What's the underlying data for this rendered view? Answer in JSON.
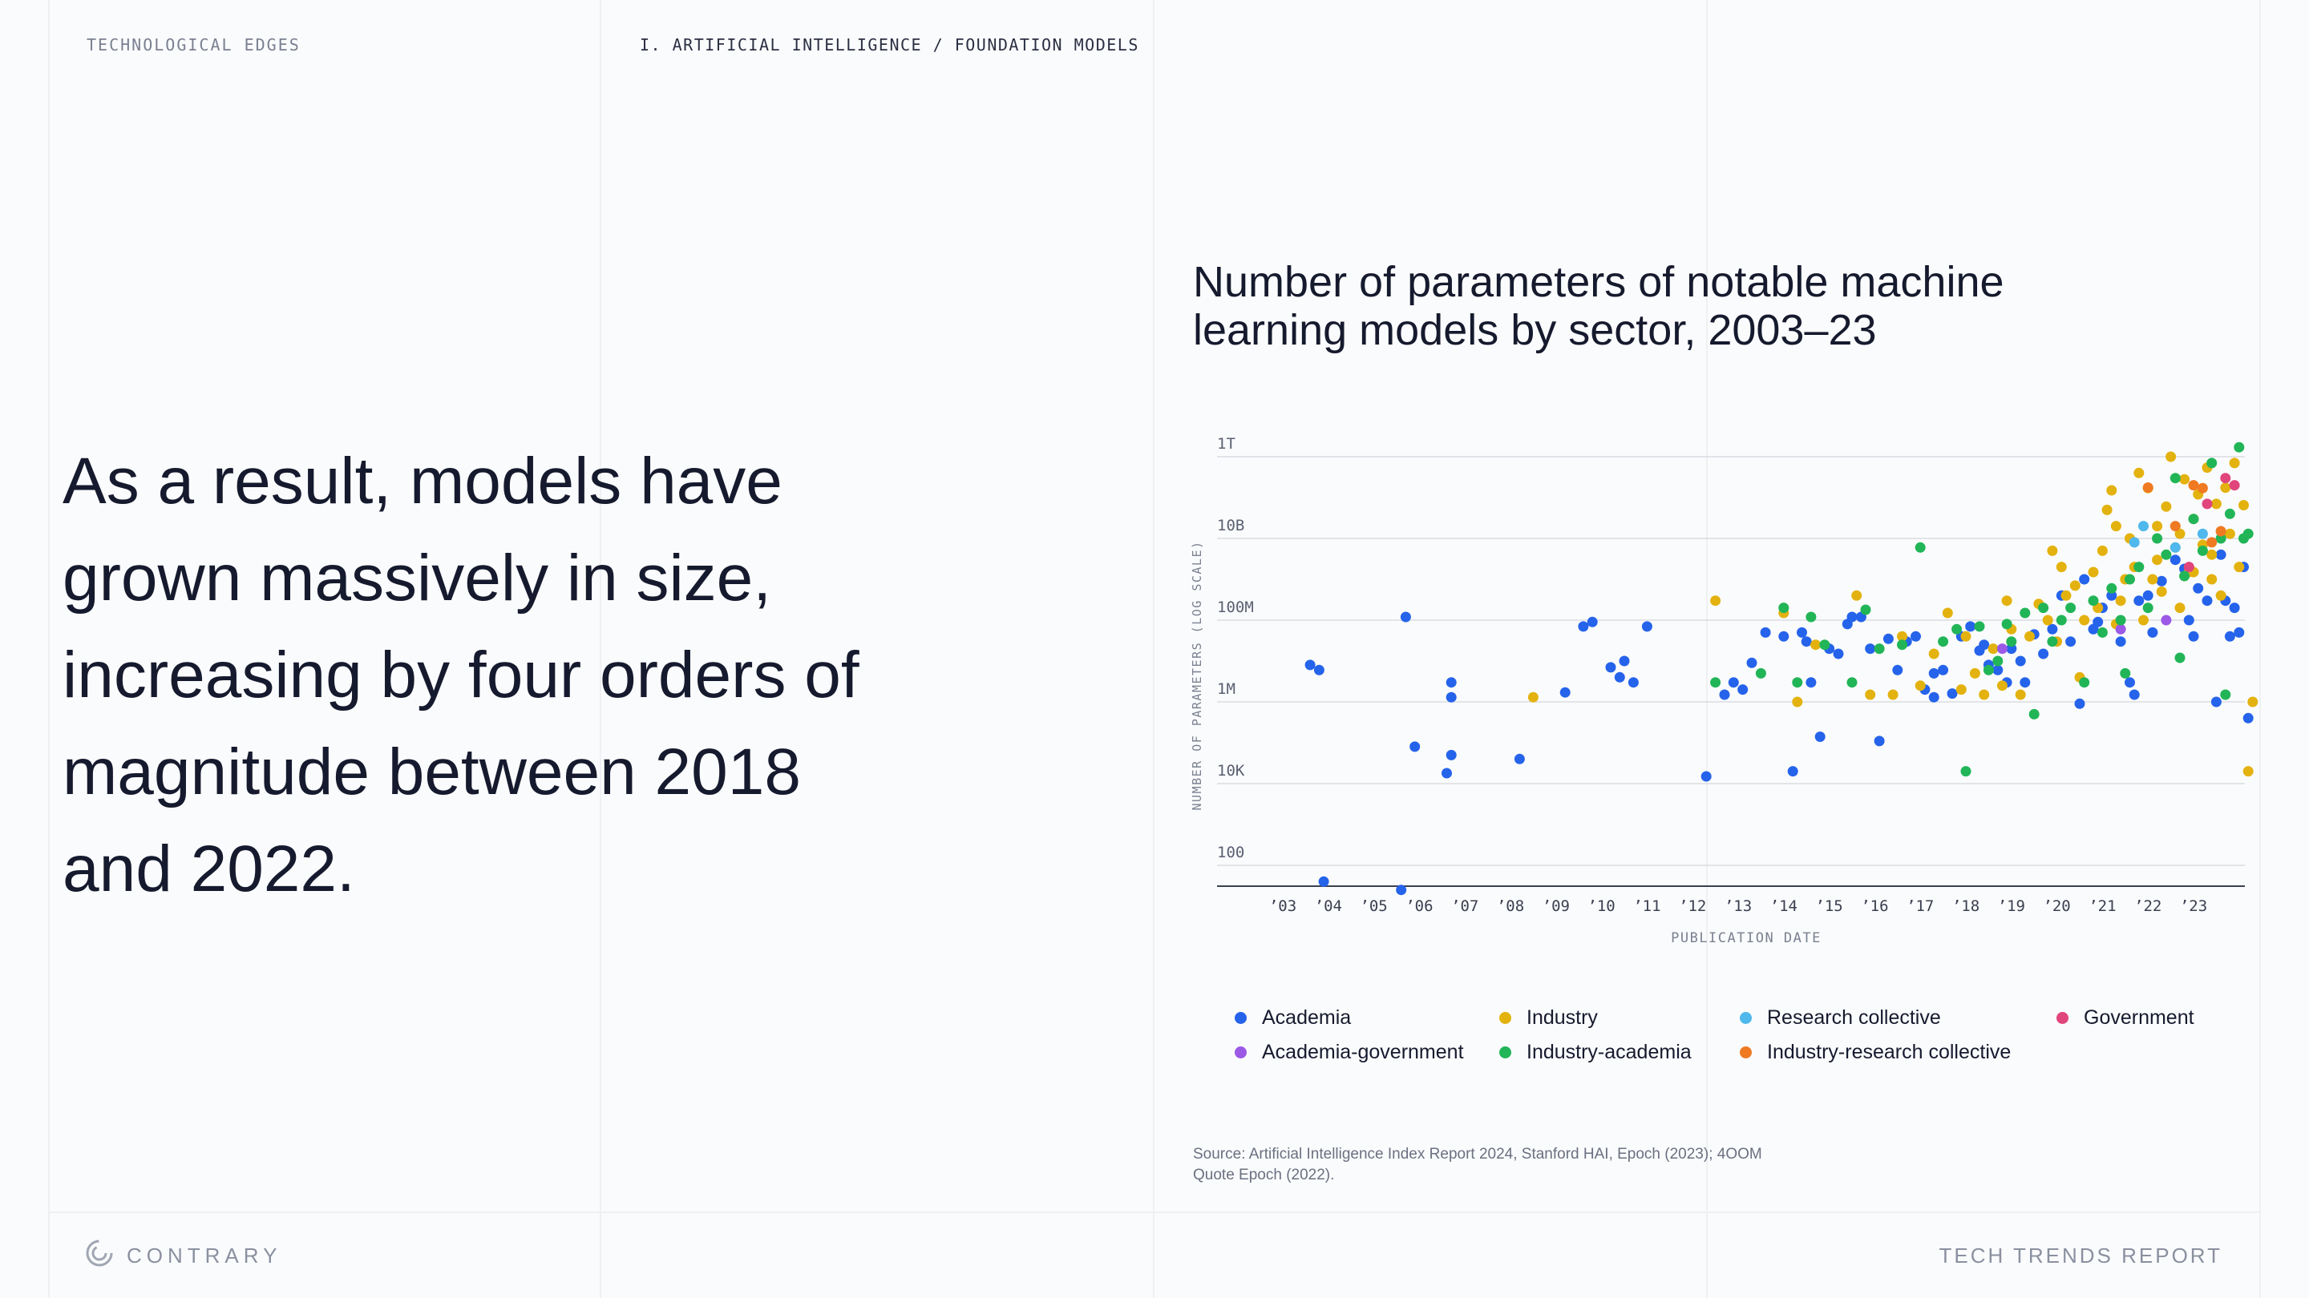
{
  "header": {
    "left_label": "TECHNOLOGICAL EDGES",
    "section_path": "I. ARTIFICIAL INTELLIGENCE / FOUNDATION MODELS"
  },
  "headline": "As a result, models have grown massively in size, increasing by four orders of magnitude between 2018 and 2022.",
  "footer": {
    "logo_text": "CONTRARY",
    "report_name": "TECH TRENDS REPORT"
  },
  "source": "Source: Artificial Intelligence Index Report 2024, Stanford HAI, Epoch (2023); 4OOM Quote Epoch (2022).",
  "colors": {
    "Academia": "#2563eb",
    "Industry": "#e3b20f",
    "Research collective": "#4fb8ec",
    "Government": "#e0457b",
    "Academia-government": "#9b59e6",
    "Industry-academia": "#21b557",
    "Industry-research collective": "#ef7a22"
  },
  "legend": [
    "Academia",
    "Industry",
    "Research collective",
    "Government",
    "Academia-government",
    "Industry-academia",
    "Industry-research collective"
  ],
  "chart_data": {
    "type": "scatter",
    "title": "Number of parameters of notable machine learning models by sector, 2003–23",
    "xlabel": "PUBLICATION DATE",
    "ylabel": "NUMBER OF PARAMETERS (LOG SCALE)",
    "y_scale": "log",
    "ylim": [
      10,
      10000000000000
    ],
    "xlim": [
      2002,
      2024.4
    ],
    "grid": true,
    "legend_position": "bottom",
    "x_ticks": [
      "’03",
      "’04",
      "’05",
      "’06",
      "’07",
      "’08",
      "’09",
      "’10",
      "’11",
      "’12",
      "’13",
      "’14",
      "’15",
      "’16",
      "’17",
      "’18",
      "’19",
      "’20",
      "’21",
      "’22",
      "’23"
    ],
    "y_ticks": [
      {
        "label": "1T",
        "value": 1000000000000
      },
      {
        "label": "10B",
        "value": 10000000000
      },
      {
        "label": "100M",
        "value": 100000000
      },
      {
        "label": "1M",
        "value": 1000000
      },
      {
        "label": "10K",
        "value": 10000
      },
      {
        "label": "100",
        "value": 100
      }
    ],
    "series": [
      {
        "name": "Academia",
        "points": [
          [
            2003.6,
            8000000
          ],
          [
            2003.8,
            6000000
          ],
          [
            2003.9,
            40
          ],
          [
            2005.7,
            120000000
          ],
          [
            2005.9,
            80000
          ],
          [
            2005.6,
            25
          ],
          [
            2006.7,
            3000000
          ],
          [
            2006.7,
            1300000
          ],
          [
            2006.7,
            50000
          ],
          [
            2006.6,
            18000
          ],
          [
            2008.2,
            40000
          ],
          [
            2009.2,
            1700000
          ],
          [
            2009.6,
            70000000
          ],
          [
            2009.8,
            90000000
          ],
          [
            2010.2,
            7000000
          ],
          [
            2010.5,
            10000000
          ],
          [
            2010.4,
            4000000
          ],
          [
            2010.7,
            3000000
          ],
          [
            2011.0,
            70000000
          ],
          [
            2012.3,
            15000
          ],
          [
            2012.7,
            1500000
          ],
          [
            2012.9,
            3000000
          ],
          [
            2013.1,
            2000000
          ],
          [
            2013.3,
            9000000
          ],
          [
            2013.6,
            50000000
          ],
          [
            2014.0,
            40000000
          ],
          [
            2014.2,
            20000
          ],
          [
            2014.4,
            50000000
          ],
          [
            2014.5,
            30000000
          ],
          [
            2014.6,
            3000000
          ],
          [
            2014.8,
            140000
          ],
          [
            2015.0,
            20000000
          ],
          [
            2015.2,
            15000000
          ],
          [
            2015.4,
            80000000
          ],
          [
            2015.5,
            120000000
          ],
          [
            2015.7,
            120000000
          ],
          [
            2015.9,
            20000000
          ],
          [
            2016.1,
            110000
          ],
          [
            2016.3,
            35000000
          ],
          [
            2016.5,
            6000000
          ],
          [
            2016.7,
            30000000
          ],
          [
            2016.9,
            40000000
          ],
          [
            2017.1,
            2000000
          ],
          [
            2017.3,
            1300000
          ],
          [
            2017.5,
            6000000
          ],
          [
            2017.7,
            1600000
          ],
          [
            2017.9,
            40000000
          ],
          [
            2018.1,
            70000000
          ],
          [
            2018.3,
            18000000
          ],
          [
            2018.5,
            8000000
          ],
          [
            2018.7,
            6000000
          ],
          [
            2018.9,
            3000000
          ],
          [
            2019.0,
            20000000
          ],
          [
            2019.3,
            3000000
          ],
          [
            2019.5,
            45000000
          ],
          [
            2019.7,
            15000000
          ],
          [
            2019.9,
            60000000
          ],
          [
            2020.1,
            400000000
          ],
          [
            2020.3,
            30000000
          ],
          [
            2020.5,
            900000
          ],
          [
            2020.6,
            1000000000
          ],
          [
            2020.9,
            90000000
          ],
          [
            2021.0,
            200000000
          ],
          [
            2021.2,
            400000000
          ],
          [
            2021.4,
            30000000
          ],
          [
            2021.6,
            3000000
          ],
          [
            2021.7,
            1500000
          ],
          [
            2021.8,
            300000000
          ],
          [
            2022.1,
            50000000
          ],
          [
            2022.3,
            900000000
          ],
          [
            2022.6,
            3000000000
          ],
          [
            2022.8,
            1800000000
          ],
          [
            2022.9,
            100000000
          ],
          [
            2023.0,
            40000000
          ],
          [
            2023.1,
            600000000
          ],
          [
            2023.3,
            300000000
          ],
          [
            2023.5,
            1000000
          ],
          [
            2023.6,
            4000000000
          ],
          [
            2023.7,
            300000000
          ],
          [
            2023.8,
            40000000
          ],
          [
            2023.9,
            200000000
          ],
          [
            2024.0,
            50000000
          ],
          [
            2024.1,
            2000000000
          ],
          [
            2024.2,
            400000
          ],
          [
            2017.3,
            5000000
          ],
          [
            2018.4,
            25000000
          ],
          [
            2019.2,
            10000000
          ],
          [
            2020.8,
            60000000
          ],
          [
            2022.0,
            400000000
          ]
        ]
      },
      {
        "name": "Industry",
        "points": [
          [
            2008.5,
            1300000
          ],
          [
            2012.5,
            300000000
          ],
          [
            2014.0,
            150000000
          ],
          [
            2014.3,
            1000000
          ],
          [
            2014.7,
            25000000
          ],
          [
            2015.6,
            400000000
          ],
          [
            2015.9,
            1500000
          ],
          [
            2016.4,
            1500000
          ],
          [
            2016.6,
            40000000
          ],
          [
            2017.0,
            2500000
          ],
          [
            2017.3,
            15000000
          ],
          [
            2017.6,
            150000000
          ],
          [
            2017.9,
            2000000
          ],
          [
            2018.0,
            40000000
          ],
          [
            2018.2,
            5000000
          ],
          [
            2018.4,
            1500000
          ],
          [
            2018.6,
            20000000
          ],
          [
            2018.8,
            2500000
          ],
          [
            2018.9,
            300000000
          ],
          [
            2019.0,
            60000000
          ],
          [
            2019.2,
            1500000
          ],
          [
            2019.4,
            40000000
          ],
          [
            2019.6,
            250000000
          ],
          [
            2019.8,
            100000000
          ],
          [
            2019.9,
            5000000000
          ],
          [
            2020.0,
            30000000
          ],
          [
            2020.1,
            2000000000
          ],
          [
            2020.2,
            400000000
          ],
          [
            2020.4,
            700000000
          ],
          [
            2020.5,
            4000000
          ],
          [
            2020.6,
            100000000
          ],
          [
            2020.8,
            1500000000
          ],
          [
            2020.9,
            200000000
          ],
          [
            2021.0,
            5000000000
          ],
          [
            2021.1,
            50000000000
          ],
          [
            2021.2,
            150000000000
          ],
          [
            2021.3,
            80000000
          ],
          [
            2021.4,
            300000000
          ],
          [
            2021.5,
            1000000000
          ],
          [
            2021.6,
            10000000000
          ],
          [
            2021.7,
            2000000000
          ],
          [
            2021.8,
            400000000000
          ],
          [
            2021.9,
            100000000
          ],
          [
            2022.0,
            170000000000
          ],
          [
            2022.1,
            1000000000
          ],
          [
            2022.2,
            20000000000
          ],
          [
            2022.3,
            500000000
          ],
          [
            2022.4,
            60000000000
          ],
          [
            2022.5,
            1000000000000
          ],
          [
            2022.6,
            6000000000
          ],
          [
            2022.7,
            200000000
          ],
          [
            2022.8,
            280000000000
          ],
          [
            2022.9,
            1500000000
          ],
          [
            2023.0,
            30000000000
          ],
          [
            2023.1,
            120000000000
          ],
          [
            2023.2,
            7000000000
          ],
          [
            2023.3,
            540000000000
          ],
          [
            2023.4,
            1000000000
          ],
          [
            2023.5,
            70000000000
          ],
          [
            2023.6,
            400000000
          ],
          [
            2023.7,
            175000000000
          ],
          [
            2023.8,
            13000000000
          ],
          [
            2023.9,
            700000000000
          ],
          [
            2024.0,
            2000000000
          ],
          [
            2024.1,
            65000000000
          ],
          [
            2024.2,
            20000
          ],
          [
            2024.3,
            1000000
          ],
          [
            2021.3,
            20000000000
          ],
          [
            2022.2,
            3000000000
          ],
          [
            2023.4,
            4000000000
          ],
          [
            2022.7,
            13000000000
          ],
          [
            2023.0,
            1500000000
          ]
        ]
      },
      {
        "name": "Research collective",
        "points": [
          [
            2021.7,
            8000000000
          ],
          [
            2022.6,
            6000000000
          ],
          [
            2023.2,
            13000000000
          ],
          [
            2021.9,
            20000000000
          ]
        ]
      },
      {
        "name": "Government",
        "points": [
          [
            2023.3,
            70000000000
          ],
          [
            2023.7,
            300000000000
          ],
          [
            2022.9,
            2000000000
          ],
          [
            2023.9,
            200000000000
          ]
        ]
      },
      {
        "name": "Academia-government",
        "points": [
          [
            2018.8,
            20000000
          ],
          [
            2021.4,
            60000000
          ],
          [
            2022.4,
            100000000
          ]
        ]
      },
      {
        "name": "Industry-academia",
        "points": [
          [
            2012.5,
            3000000
          ],
          [
            2013.5,
            5000000
          ],
          [
            2014.0,
            200000000
          ],
          [
            2014.3,
            3000000
          ],
          [
            2014.6,
            120000000
          ],
          [
            2014.9,
            25000000
          ],
          [
            2015.5,
            3000000
          ],
          [
            2015.8,
            180000000
          ],
          [
            2016.1,
            20000000
          ],
          [
            2016.6,
            25000000
          ],
          [
            2017.0,
            6000000000
          ],
          [
            2017.5,
            30000000
          ],
          [
            2017.8,
            60000000
          ],
          [
            2018.0,
            20000
          ],
          [
            2018.3,
            70000000
          ],
          [
            2018.5,
            6000000
          ],
          [
            2018.7,
            10000000
          ],
          [
            2018.9,
            80000000
          ],
          [
            2019.0,
            30000000
          ],
          [
            2019.3,
            150000000
          ],
          [
            2019.5,
            500000
          ],
          [
            2019.7,
            200000000
          ],
          [
            2019.9,
            30000000
          ],
          [
            2020.1,
            100000000
          ],
          [
            2020.3,
            200000000
          ],
          [
            2020.6,
            3000000
          ],
          [
            2020.8,
            300000000
          ],
          [
            2021.0,
            50000000
          ],
          [
            2021.2,
            600000000
          ],
          [
            2021.4,
            100000000
          ],
          [
            2021.6,
            1000000000
          ],
          [
            2021.8,
            2000000000
          ],
          [
            2022.0,
            200000000
          ],
          [
            2022.2,
            10000000000
          ],
          [
            2022.4,
            4000000000
          ],
          [
            2022.6,
            300000000000
          ],
          [
            2022.8,
            1200000000
          ],
          [
            2023.0,
            30000000000
          ],
          [
            2023.2,
            5000000000
          ],
          [
            2023.4,
            700000000000
          ],
          [
            2023.6,
            10000000000
          ],
          [
            2023.8,
            40000000000
          ],
          [
            2024.0,
            1700000000000
          ],
          [
            2024.1,
            10000000000
          ],
          [
            2024.2,
            13000000000
          ],
          [
            2023.7,
            1500000
          ],
          [
            2021.5,
            5000000
          ],
          [
            2022.7,
            12000000
          ]
        ]
      },
      {
        "name": "Industry-research collective",
        "points": [
          [
            2022.0,
            176000000000
          ],
          [
            2022.6,
            20000000000
          ],
          [
            2023.0,
            200000000000
          ],
          [
            2023.2,
            170000000000
          ],
          [
            2023.4,
            8000000000
          ],
          [
            2023.6,
            15000000000
          ]
        ]
      }
    ]
  }
}
